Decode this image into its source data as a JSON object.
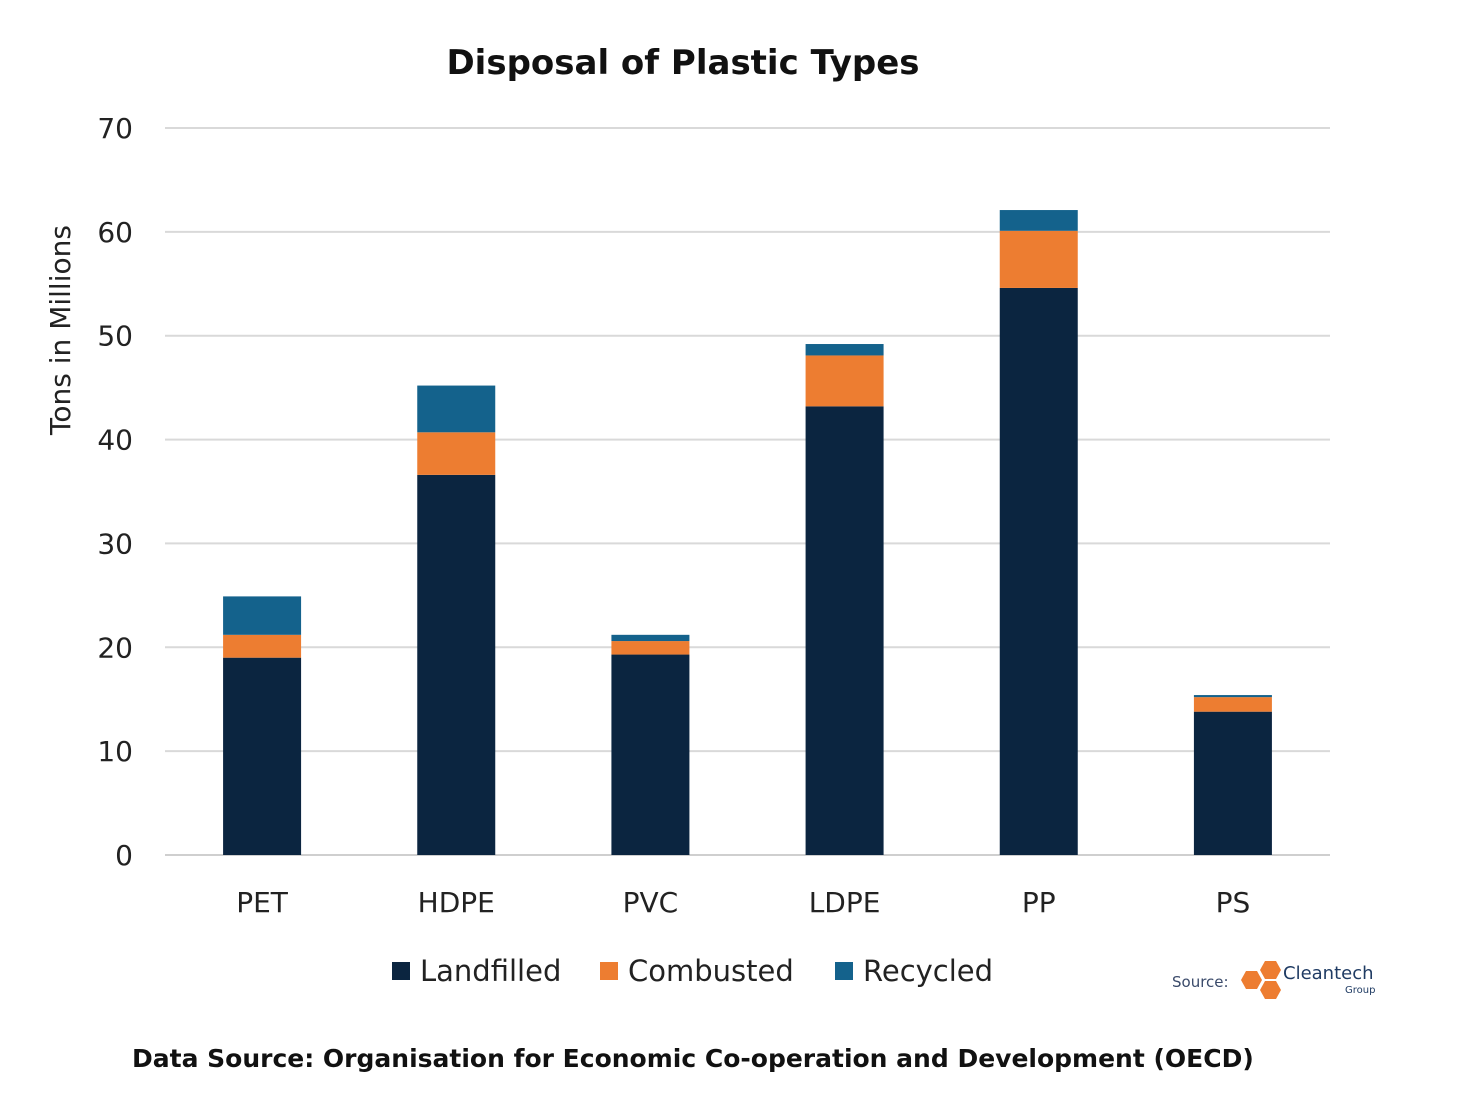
{
  "colors": {
    "Landfilled": "#0b2540",
    "Combusted": "#ed7d31",
    "Recycled": "#14628c"
  },
  "chart_data": {
    "type": "bar",
    "stacked": true,
    "title": "Disposal of Plastic Types",
    "xlabel": "",
    "ylabel": "Tons in Millions",
    "ylim": [
      0,
      70
    ],
    "yticks": [
      0,
      10,
      20,
      30,
      40,
      50,
      60,
      70
    ],
    "grid": true,
    "legend_position": "bottom",
    "categories": [
      "PET",
      "HDPE",
      "PVC",
      "LDPE",
      "PP",
      "PS"
    ],
    "series": [
      {
        "name": "Landfilled",
        "values": [
          19.0,
          36.6,
          19.3,
          43.2,
          54.6,
          13.8
        ]
      },
      {
        "name": "Combusted",
        "values": [
          2.2,
          4.1,
          1.3,
          4.9,
          5.5,
          1.4
        ]
      },
      {
        "name": "Recycled",
        "values": [
          3.7,
          4.5,
          0.6,
          1.1,
          2.0,
          0.2
        ]
      }
    ]
  },
  "watermark": {
    "label": "Source:",
    "brand": "Cleantech",
    "brand_sub": "Group",
    "hex_color": "#ed7d31"
  },
  "footer": {
    "text": "Data Source: Organisation for Economic Co-operation and Development (OECD)"
  }
}
